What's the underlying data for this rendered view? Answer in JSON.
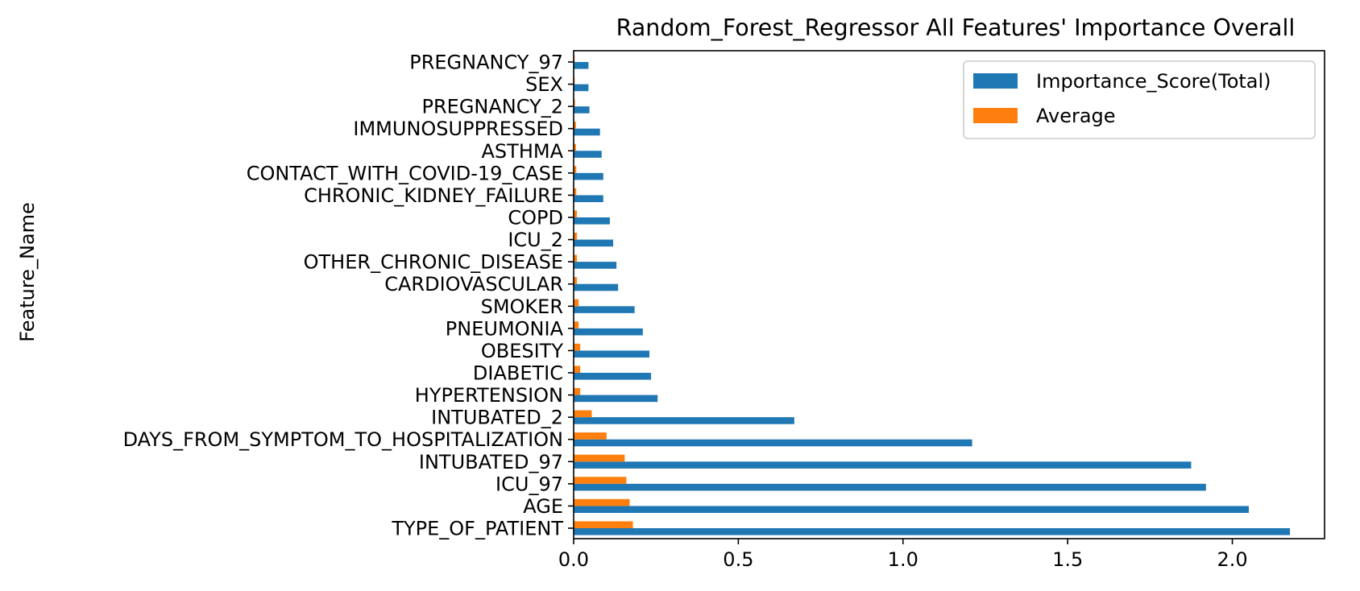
{
  "chart_data": {
    "type": "bar",
    "orientation": "horizontal",
    "title": "Random_Forest_Regressor All Features' Importance Overall",
    "xlabel": "",
    "ylabel": "Feature_Name",
    "xlim": [
      0.0,
      2.28
    ],
    "xticks": [
      "0.0",
      "0.5",
      "1.0",
      "1.5",
      "2.0"
    ],
    "grid": false,
    "legend_position": "top-right",
    "categories": [
      "TYPE_OF_PATIENT",
      "AGE",
      "ICU_97",
      "INTUBATED_97",
      "DAYS_FROM_SYMPTOM_TO_HOSPITALIZATION",
      "INTUBATED_2",
      "HYPERTENSION",
      "DIABETIC",
      "OBESITY",
      "PNEUMONIA",
      "SMOKER",
      "CARDIOVASCULAR",
      "OTHER_CHRONIC_DISEASE",
      "ICU_2",
      "COPD",
      "CHRONIC_KIDNEY_FAILURE",
      "CONTACT_WITH_COVID-19_CASE",
      "ASTHMA",
      "IMMUNOSUPPRESSED",
      "PREGNANCY_2",
      "SEX",
      "PREGNANCY_97"
    ],
    "series": [
      {
        "name": "Importance_Score(Total)",
        "color": "#1f77b4",
        "values": [
          2.175,
          2.05,
          1.92,
          1.875,
          1.21,
          0.67,
          0.255,
          0.235,
          0.23,
          0.21,
          0.185,
          0.135,
          0.13,
          0.12,
          0.11,
          0.09,
          0.09,
          0.085,
          0.08,
          0.048,
          0.045,
          0.045
        ]
      },
      {
        "name": "Average",
        "color": "#ff7f0e",
        "values": [
          0.18,
          0.17,
          0.16,
          0.155,
          0.1,
          0.055,
          0.02,
          0.02,
          0.02,
          0.015,
          0.015,
          0.01,
          0.01,
          0.01,
          0.01,
          0.008,
          0.008,
          0.007,
          0.007,
          0.004,
          0.003,
          0.003
        ]
      }
    ]
  }
}
